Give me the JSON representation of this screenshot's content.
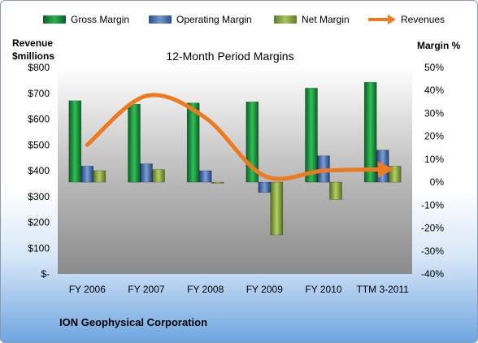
{
  "legend": {
    "gross": "Gross Margin",
    "operating": "Operating Margin",
    "net": "Net Margin",
    "revenues": "Revenues"
  },
  "left_axis_label": {
    "line1": "Revenue",
    "line2": "$millions"
  },
  "right_axis_label": "Margin %",
  "company": "ION Geophysical Corporation",
  "colors": {
    "gross": "#1c8a3c",
    "operating": "#4a72b8",
    "net": "#8fb049",
    "revenues": "#ee7a1f"
  },
  "chart_data": {
    "type": "bar",
    "title": "12-Month Period Margins",
    "categories": [
      "FY 2006",
      "FY 2007",
      "FY 2008",
      "FY 2009",
      "FY 2010",
      "TTM 3-2011"
    ],
    "series": [
      {
        "name": "Gross Margin",
        "axis": "right",
        "values": [
          35.5,
          34,
          34.5,
          35,
          41,
          43.5
        ]
      },
      {
        "name": "Operating Margin",
        "axis": "right",
        "values": [
          7,
          8,
          5,
          -4.5,
          11.5,
          14
        ]
      },
      {
        "name": "Net Margin",
        "axis": "right",
        "values": [
          5,
          5.5,
          -0.5,
          -23,
          -7.5,
          7
        ]
      },
      {
        "name": "Revenues",
        "type": "line",
        "axis": "left",
        "values": [
          500,
          690,
          605,
          380,
          400,
          405
        ]
      }
    ],
    "left_axis": {
      "ylim": [
        0,
        800
      ],
      "ticks": [
        "$-",
        "$100",
        "$200",
        "$300",
        "$400",
        "$500",
        "$600",
        "$700",
        "$800"
      ]
    },
    "right_axis": {
      "ylim": [
        -40,
        50
      ],
      "ticks": [
        "-40%",
        "-30%",
        "-20%",
        "-10%",
        "0%",
        "10%",
        "20%",
        "30%",
        "40%",
        "50%"
      ]
    },
    "grid": false,
    "legend_position": "top"
  }
}
